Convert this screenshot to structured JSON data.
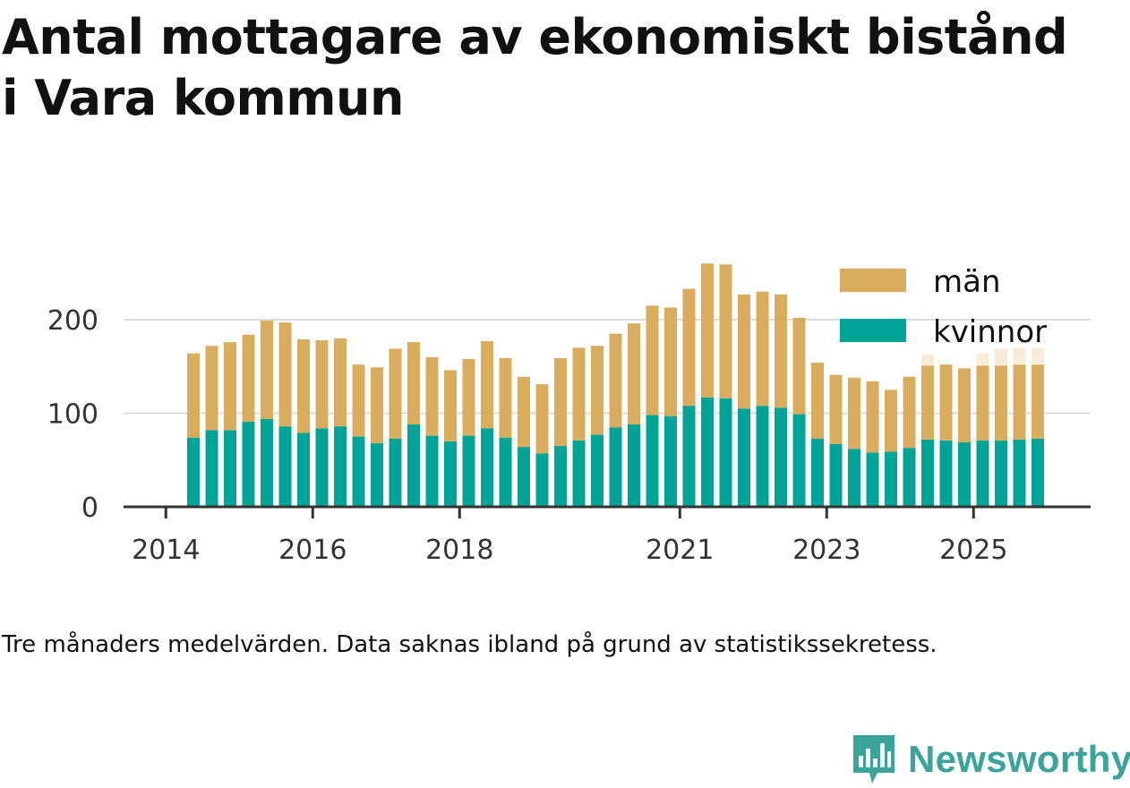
{
  "title_lines": [
    "Antal mottagare av ekonomiskt bistånd",
    "i Vara kommun"
  ],
  "note": "Tre månaders medelvärden. Data saknas ibland på grund av statistikssekretess.",
  "brand": {
    "name": "Newsworthy",
    "icon": "newsworthy-logo-icon",
    "color": "#3aa39a"
  },
  "colors": {
    "kvinnor": "#00a497",
    "man": "#d9ad5d",
    "preliminary": "#f7ecd8",
    "grid": "#dddddd",
    "axis": "#333333",
    "text": "#333333"
  },
  "chart_data": {
    "type": "bar",
    "stacked": true,
    "ylim": [
      0,
      270
    ],
    "yticks": [
      0,
      100,
      200
    ],
    "grid": true,
    "legend_position": "top-right",
    "x_tick_labels": [
      "2014",
      "2016",
      "2018",
      "2021",
      "2023",
      "2025"
    ],
    "series_names": {
      "man": "män",
      "kvinnor": "kvinnor"
    },
    "periods": [
      "2014-Q2",
      "2014-Q3",
      "2014-Q4",
      "2015-Q1",
      "2015-Q2",
      "2015-Q3",
      "2015-Q4",
      "2016-Q1",
      "2016-Q2",
      "2016-Q3",
      "2016-Q4",
      "2017-Q1",
      "2017-Q2",
      "2017-Q3",
      "2017-Q4",
      "2018-Q1",
      "2018-Q2",
      "2018-Q3",
      "2018-Q4",
      "2019-Q1",
      "2019-Q2",
      "2019-Q3",
      "2019-Q4",
      "2020-Q1",
      "2020-Q2",
      "2020-Q3",
      "2020-Q4",
      "2021-Q1",
      "2021-Q2",
      "2021-Q3",
      "2021-Q4",
      "2022-Q1",
      "2022-Q2",
      "2022-Q3",
      "2022-Q4",
      "2023-Q1",
      "2023-Q2",
      "2023-Q3",
      "2023-Q4",
      "2024-Q1",
      "2024-Q2",
      "2024-Q3",
      "2024-Q4",
      "2025-Q1",
      "2025-Q2",
      "2025-Q3",
      "2025-Q4"
    ],
    "kvinnor": [
      74,
      82,
      82,
      91,
      94,
      86,
      79,
      84,
      86,
      75,
      68,
      73,
      88,
      76,
      70,
      76,
      84,
      74,
      64,
      57,
      65,
      71,
      77,
      85,
      88,
      98,
      97,
      108,
      117,
      116,
      105,
      108,
      106,
      99,
      73,
      67,
      62,
      58,
      59,
      63,
      72,
      71,
      69,
      71,
      71,
      72,
      73
    ],
    "man": [
      90,
      90,
      94,
      93,
      105,
      111,
      100,
      94,
      94,
      77,
      81,
      96,
      88,
      84,
      76,
      82,
      93,
      85,
      75,
      74,
      94,
      99,
      95,
      100,
      108,
      117,
      116,
      125,
      143,
      143,
      122,
      122,
      121,
      103,
      81,
      74,
      76,
      76,
      66,
      76,
      79,
      81,
      79,
      80,
      80,
      80,
      79
    ],
    "preliminary": [
      0,
      0,
      0,
      0,
      0,
      0,
      0,
      0,
      0,
      0,
      0,
      0,
      0,
      0,
      0,
      0,
      0,
      0,
      0,
      0,
      0,
      0,
      0,
      0,
      0,
      0,
      0,
      0,
      0,
      0,
      0,
      0,
      0,
      0,
      0,
      0,
      0,
      0,
      0,
      0,
      12,
      0,
      0,
      13,
      18,
      18,
      18
    ]
  }
}
